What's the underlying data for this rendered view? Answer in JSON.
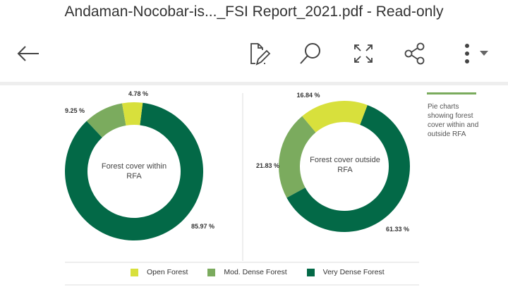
{
  "header": {
    "title": "Andaman-Nocobar-is..._FSI Report_2021.pdf - Read-only"
  },
  "toolbar": {
    "icons": [
      "back-arrow-icon",
      "edit-document-icon",
      "search-icon",
      "fullscreen-icon",
      "share-icon",
      "more-options-icon"
    ]
  },
  "colors": {
    "open": "#d8e03c",
    "mod": "#7bab5e",
    "very": "#036947"
  },
  "caption": "Pie charts showing forest cover within and outside RFA",
  "chart_data": [
    {
      "type": "pie",
      "title": "Forest cover within RFA",
      "categories": [
        "Open Forest",
        "Mod. Dense Forest",
        "Very Dense Forest"
      ],
      "values": [
        4.78,
        9.25,
        85.97
      ],
      "labels": [
        "4.78 %",
        "9.25 %",
        "85.97 %"
      ]
    },
    {
      "type": "pie",
      "title": "Forest cover outside RFA",
      "categories": [
        "Open Forest",
        "Mod. Dense Forest",
        "Very Dense Forest"
      ],
      "values": [
        16.84,
        21.83,
        61.33
      ],
      "labels": [
        "16.84 %",
        "21.83 %",
        "61.33 %"
      ]
    }
  ],
  "legend": [
    "Open Forest",
    "Mod. Dense Forest",
    "Very Dense Forest"
  ]
}
